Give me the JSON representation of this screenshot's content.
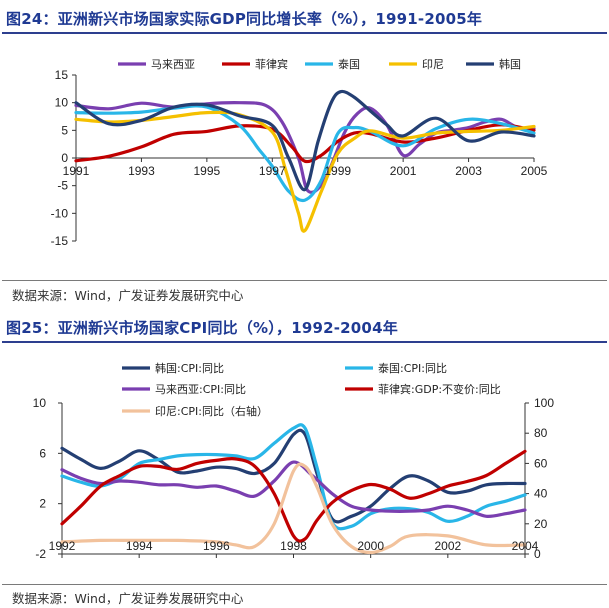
{
  "chart_data": [
    {
      "type": "line",
      "title": "图24：亚洲新兴市场国家实际GDP同比增长率（%），1991-2005年",
      "source": "数据来源：Wind，广发证券发展研究中心",
      "x_ticks": [
        "1991",
        "1993",
        "1995",
        "1997",
        "1999",
        "2001",
        "2003",
        "2005"
      ],
      "y_ticks": [
        "15",
        "10",
        "5",
        "0",
        "-5",
        "-10",
        "-15"
      ],
      "xlim": [
        1991,
        2005
      ],
      "ylim": [
        -15,
        15
      ],
      "series": [
        {
          "name": "马来西亚",
          "color": "#7a3fb0",
          "x": [
            1991,
            1992,
            1993,
            1994,
            1995,
            1996,
            1996.8,
            1997.3,
            1997.8,
            1998.1,
            1998.6,
            1999.2,
            1999.6,
            2000,
            2000.5,
            2001,
            2001.5,
            2002,
            2002.5,
            2003,
            2003.5,
            2004,
            2004.5,
            2005
          ],
          "y": [
            9.5,
            8.9,
            9.9,
            9.2,
            9.8,
            10.0,
            9.5,
            6.5,
            0.0,
            -6.0,
            -4.0,
            4.5,
            8.0,
            9.0,
            6.0,
            0.5,
            2.5,
            4.5,
            5.0,
            5.5,
            6.5,
            7.0,
            5.5,
            5.3
          ]
        },
        {
          "name": "菲律宾",
          "color": "#c00000",
          "x": [
            1991,
            1992,
            1993,
            1994,
            1995,
            1996,
            1997,
            1997.6,
            1998,
            1998.5,
            1999,
            1999.5,
            2000,
            2001,
            2002,
            2003,
            2004,
            2005
          ],
          "y": [
            -0.5,
            0.3,
            2.0,
            4.3,
            4.8,
            5.8,
            5.2,
            2.0,
            -0.6,
            0.5,
            3.0,
            4.5,
            4.4,
            2.9,
            3.6,
            5.0,
            6.0,
            5.0
          ]
        },
        {
          "name": "泰国",
          "color": "#29b6e8",
          "x": [
            1991,
            1992,
            1993,
            1994,
            1995,
            1996,
            1996.6,
            1997,
            1997.5,
            1998,
            1998.5,
            1999,
            1999.5,
            2000,
            2001,
            2002,
            2003,
            2004,
            2005
          ],
          "y": [
            8.2,
            8.1,
            8.3,
            9.0,
            9.2,
            5.9,
            1.5,
            -1.5,
            -6.0,
            -7.6,
            -4.0,
            4.4,
            5.5,
            4.8,
            2.2,
            5.3,
            7.0,
            6.2,
            4.5
          ]
        },
        {
          "name": "印尼",
          "color": "#f5c000",
          "x": [
            1991,
            1992,
            1993,
            1994,
            1995,
            1996,
            1997,
            1997.4,
            1997.8,
            1998,
            1998.5,
            1999,
            1999.5,
            2000,
            2001,
            2002,
            2003,
            2004,
            2005
          ],
          "y": [
            7.0,
            6.5,
            6.8,
            7.5,
            8.2,
            7.8,
            4.7,
            -2.0,
            -10.0,
            -13.1,
            -6.0,
            0.8,
            3.5,
            4.9,
            3.6,
            4.5,
            4.8,
            5.0,
            5.7
          ]
        },
        {
          "name": "韩国",
          "color": "#243f73",
          "x": [
            1991,
            1992,
            1993,
            1994,
            1995,
            1996,
            1997,
            1997.5,
            1998,
            1998.4,
            1998.8,
            1999.1,
            1999.5,
            2000,
            2000.5,
            2001,
            2002,
            2003,
            2004,
            2005
          ],
          "y": [
            10.0,
            6.2,
            6.8,
            9.2,
            9.6,
            7.6,
            5.9,
            0.0,
            -5.7,
            3.0,
            10.0,
            12.0,
            11.0,
            8.5,
            6.0,
            4.0,
            7.2,
            3.1,
            4.7,
            4.0
          ]
        }
      ]
    },
    {
      "type": "line",
      "title": "图25：亚洲新兴市场国家CPI同比（%），1992-2004年",
      "source": "数据来源：Wind，广发证券发展研究中心",
      "x_ticks": [
        "1992",
        "1994",
        "1996",
        "1998",
        "2000",
        "2002",
        "2004"
      ],
      "y_left_ticks": [
        "10",
        "6",
        "2",
        "-2"
      ],
      "y_right_ticks": [
        "100",
        "80",
        "60",
        "40",
        "20",
        "0"
      ],
      "xlim": [
        1992,
        2004
      ],
      "ylim_left": [
        -2,
        10
      ],
      "ylim_right": [
        0,
        100
      ],
      "series": [
        {
          "name": "韩国:CPI:同比",
          "color": "#243f73",
          "axis": "left",
          "x": [
            1992,
            1992.5,
            1993,
            1993.5,
            1994,
            1994.5,
            1995,
            1995.5,
            1996,
            1996.5,
            1997,
            1997.5,
            1998,
            1998.3,
            1998.6,
            1999,
            1999.5,
            2000,
            2000.5,
            2001,
            2001.5,
            2002,
            2002.5,
            2003,
            2003.5,
            2004
          ],
          "y": [
            6.4,
            5.5,
            4.8,
            5.4,
            6.2,
            5.5,
            4.5,
            4.6,
            4.9,
            4.8,
            4.4,
            5.2,
            7.5,
            7.5,
            4.5,
            0.8,
            1.0,
            1.8,
            3.2,
            4.2,
            3.8,
            2.9,
            3.0,
            3.5,
            3.6,
            3.6
          ]
        },
        {
          "name": "泰国:CPI:同比",
          "color": "#29b6e8",
          "axis": "left",
          "x": [
            1992,
            1992.5,
            1993,
            1993.5,
            1994,
            1994.5,
            1995,
            1995.5,
            1996,
            1996.5,
            1997,
            1997.5,
            1998,
            1998.3,
            1998.6,
            1999,
            1999.5,
            2000,
            2000.5,
            2001,
            2001.5,
            2002,
            2002.5,
            2003,
            2003.5,
            2004
          ],
          "y": [
            4.2,
            3.7,
            3.4,
            4.0,
            5.2,
            5.5,
            5.8,
            5.9,
            5.9,
            5.8,
            5.6,
            6.8,
            8.0,
            8.0,
            5.0,
            0.5,
            0.2,
            1.2,
            1.6,
            1.6,
            1.3,
            0.6,
            1.0,
            1.8,
            2.2,
            2.7
          ]
        },
        {
          "name": "马来西亚:CPI:同比",
          "color": "#7a3fb0",
          "axis": "left",
          "x": [
            1992,
            1992.5,
            1993,
            1993.5,
            1994,
            1994.5,
            1995,
            1995.5,
            1996,
            1996.5,
            1997,
            1997.5,
            1998,
            1998.5,
            1999,
            1999.5,
            2000,
            2000.5,
            2001,
            2001.5,
            2002,
            2002.5,
            2003,
            2003.5,
            2004
          ],
          "y": [
            4.7,
            4.0,
            3.6,
            3.8,
            3.7,
            3.5,
            3.5,
            3.3,
            3.4,
            3.0,
            2.6,
            3.8,
            5.3,
            4.2,
            2.8,
            1.8,
            1.5,
            1.4,
            1.4,
            1.5,
            1.8,
            1.5,
            1.0,
            1.2,
            1.5
          ]
        },
        {
          "name": "菲律宾:GDP:不变价:同比",
          "color": "#c00000",
          "axis": "right",
          "x": [
            1992,
            1992.5,
            1993,
            1993.5,
            1994,
            1994.5,
            1995,
            1995.5,
            1996,
            1996.5,
            1997,
            1997.5,
            1998,
            1998.3,
            1998.6,
            1999,
            1999.5,
            2000,
            2000.5,
            2001,
            2001.5,
            2002,
            2002.5,
            2003,
            2003.5,
            2004
          ],
          "y": [
            20,
            32,
            45,
            52,
            58,
            58,
            56,
            60,
            62,
            63,
            58,
            40,
            12,
            10,
            22,
            34,
            42,
            46,
            43,
            37,
            40,
            45,
            48,
            52,
            60,
            68
          ]
        },
        {
          "name": "印尼:CPI:同比（右轴）",
          "color": "#f2c29c",
          "axis": "right",
          "x": [
            1992,
            1993,
            1994,
            1995,
            1996,
            1996.5,
            1997,
            1997.5,
            1998,
            1998.3,
            1998.6,
            1999,
            1999.5,
            2000,
            2000.5,
            2001,
            2002,
            2003,
            2004
          ],
          "y": [
            8,
            9,
            9,
            9,
            8,
            6,
            5,
            20,
            55,
            58,
            45,
            20,
            5,
            1,
            5,
            12,
            12,
            6,
            6
          ]
        }
      ]
    }
  ]
}
